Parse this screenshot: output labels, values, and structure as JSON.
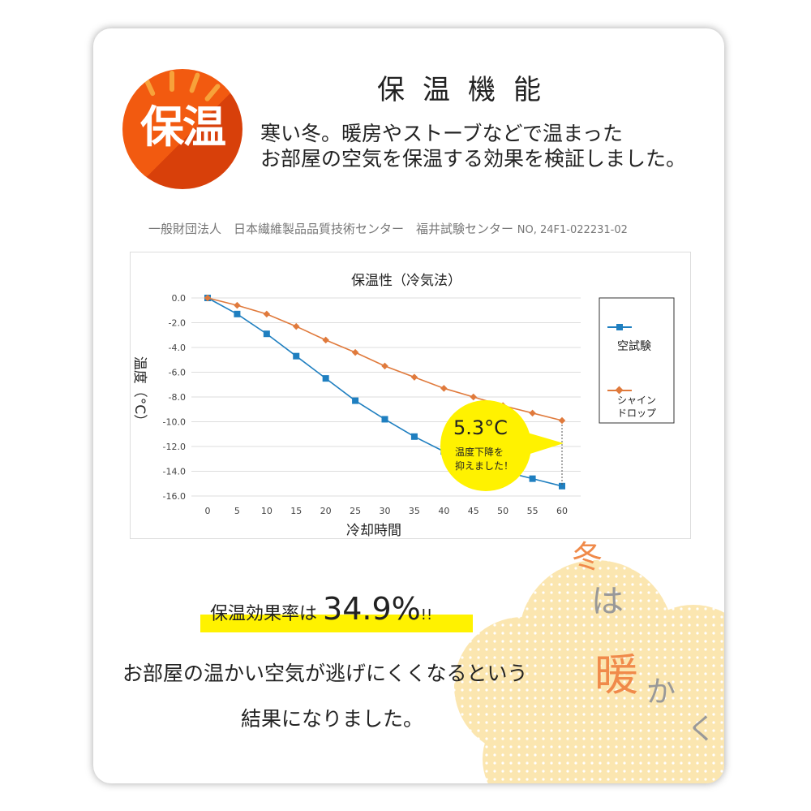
{
  "header": {
    "badge_text": "保温",
    "title": "保温機能",
    "lead_line1": "寒い冬。暖房やストーブなどで温まった",
    "lead_line2": "お部屋の空気を保温する効果を検証しました。"
  },
  "source": "一般財団法人　日本繊維製品品質技術センター　福井試験センター",
  "report_no": "NO, 24F1-022231-02",
  "chart_data": {
    "type": "line",
    "title": "保温性（冷気法）",
    "xlabel": "冷却時間",
    "ylabel": "温度（°C）",
    "x": [
      0,
      5,
      10,
      15,
      20,
      25,
      30,
      35,
      40,
      45,
      50,
      55,
      60
    ],
    "xticks": [
      "0",
      "5",
      "10",
      "15",
      "20",
      "25",
      "30",
      "35",
      "40",
      "45",
      "50",
      "55",
      "60"
    ],
    "yticks": [
      "0.0",
      "-2.0",
      "-4.0",
      "-6.0",
      "-8.0",
      "-10.0",
      "-12.0",
      "-14.0",
      "-16.0"
    ],
    "ylim": [
      -16,
      0
    ],
    "grid": true,
    "legend": "right",
    "series": [
      {
        "name": "空試験",
        "color": "#1f7fc0",
        "marker": "square",
        "values": [
          0,
          -1.3,
          -2.9,
          -4.7,
          -6.5,
          -8.3,
          -9.8,
          -11.2,
          -12.4,
          -13.3,
          -14.0,
          -14.6,
          -15.2
        ]
      },
      {
        "name": "シャインドロップ",
        "color": "#e07a3c",
        "marker": "diamond",
        "values": [
          0,
          -0.6,
          -1.3,
          -2.3,
          -3.4,
          -4.4,
          -5.5,
          -6.4,
          -7.3,
          -8.0,
          -8.7,
          -9.3,
          -9.9
        ]
      }
    ],
    "legend_labels": [
      "空試験",
      "シャイン",
      "ドロップ"
    ],
    "annotation": {
      "value": "5.3°C",
      "line1": "温度下降を",
      "line2": "抑えました！",
      "color": "#fff200"
    }
  },
  "result": {
    "label": "保温効果率は",
    "value": "34.9%",
    "suffix": "!!"
  },
  "conclusion": {
    "line1": "お部屋の温かい空気が逃げにくくなるという",
    "line2": "結果になりました。"
  },
  "decoration": {
    "words": [
      "冬",
      "は",
      "暖",
      "か",
      "く"
    ]
  }
}
